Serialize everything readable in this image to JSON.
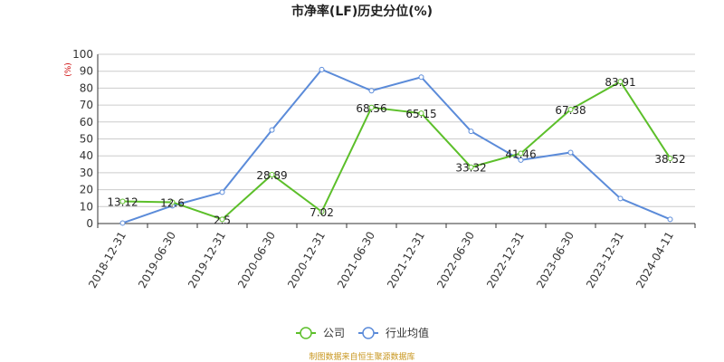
{
  "chart_data": {
    "type": "line",
    "title": "市净率(LF)历史分位(%)",
    "y_unit": "(%)",
    "ylim": [
      0,
      100
    ],
    "y_ticks": [
      0,
      10,
      20,
      30,
      40,
      50,
      60,
      70,
      80,
      90,
      100
    ],
    "categories": [
      "2018-12-31",
      "2019-06-30",
      "2019-12-31",
      "2020-06-30",
      "2020-12-31",
      "2021-06-30",
      "2021-12-31",
      "2022-06-30",
      "2022-12-31",
      "2023-06-30",
      "2023-12-31",
      "2024-04-11"
    ],
    "series": [
      {
        "name": "公司",
        "color": "#5cbf2a",
        "values": [
          13.12,
          12.6,
          2.5,
          28.89,
          7.02,
          68.56,
          65.15,
          33.32,
          41.46,
          67.38,
          83.91,
          38.52
        ],
        "labels": [
          "13.12",
          "12.6",
          "2.5",
          "28.89",
          "7.02",
          "68.56",
          "65.15",
          "33.32",
          "41.46",
          "67.38",
          "83.91",
          "38.52"
        ]
      },
      {
        "name": "行业均值",
        "color": "#5b8bd9",
        "values": [
          0.3,
          10.5,
          18.5,
          55.3,
          91.0,
          78.5,
          86.5,
          54.5,
          37.5,
          42.0,
          14.8,
          2.5
        ]
      }
    ],
    "grid": true,
    "legend_position": "bottom-center"
  },
  "footer": {
    "source": "制图数据来自恒生聚源数据库"
  }
}
